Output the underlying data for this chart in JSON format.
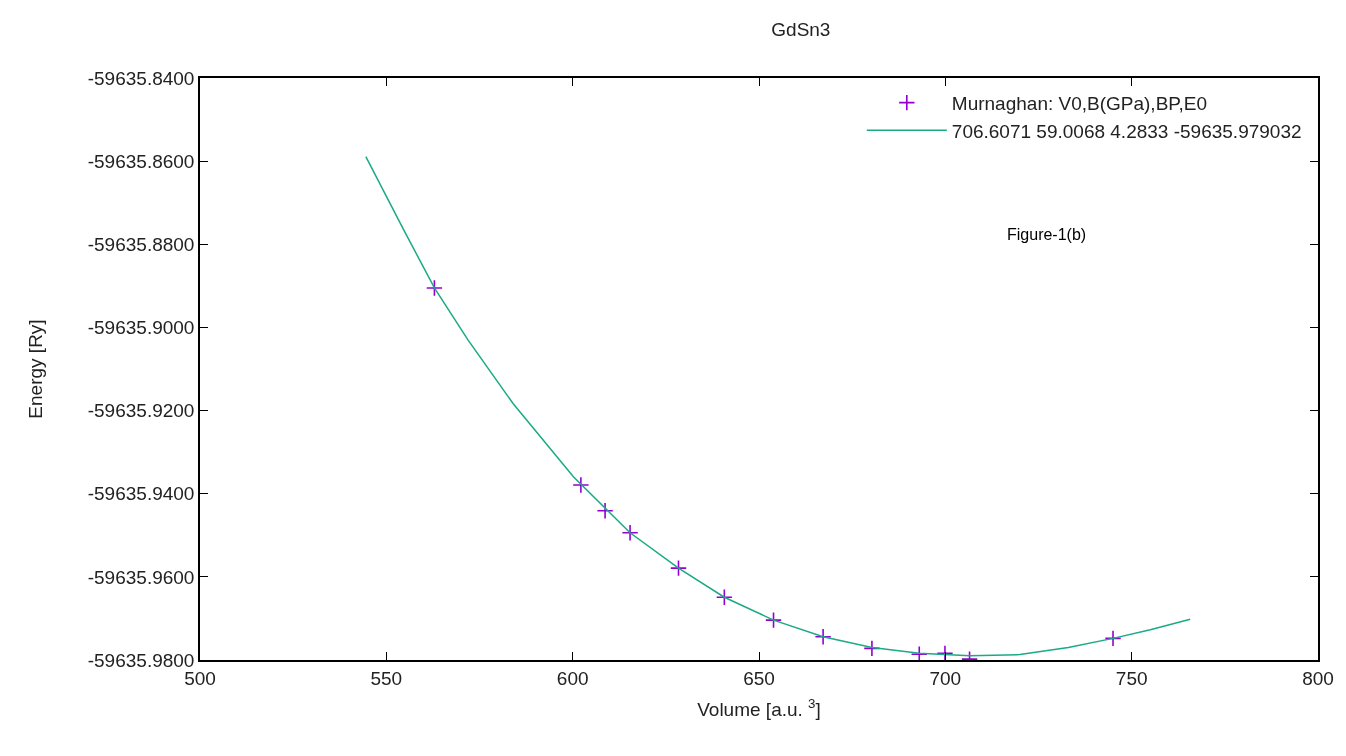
{
  "chart_data": {
    "type": "scatter",
    "title": "GdSn3",
    "xlabel": "Volume [a.u. $^{3}$]",
    "ylabel": "Energy [Ry]",
    "annotations": [
      "Figure-1(b)"
    ],
    "series": [
      {
        "name": "Murnaghan: V0,B(GPa),BP,E0",
        "marker": "cross",
        "color": "#9400d3",
        "x": [
          562.9,
          602.2,
          608.7,
          615.4,
          628.4,
          640.7,
          653.9,
          667.2,
          680.3,
          693.0,
          699.9,
          706.5,
          745.0
        ],
        "values": [
          -59635.8905,
          -59635.9379,
          -59635.9441,
          -59635.9494,
          -59635.9579,
          -59635.9649,
          -59635.9704,
          -59635.9744,
          -59635.9772,
          -59635.9786,
          -59635.9784,
          -59635.9798,
          -59635.9748
        ]
      },
      {
        "name": "706.6071 59.0068 4.2833 -59635.979032",
        "type": "line",
        "color": "#1aaa84",
        "x": [
          544.5,
          554.7,
          562.9,
          571.9,
          584.0,
          600.2,
          615.4,
          628.4,
          640.7,
          653.9,
          667.2,
          680.3,
          693.0,
          706.6,
          720.0,
          733.0,
          745.0,
          755.0,
          765.7
        ],
        "values": [
          -59635.8589,
          -59635.8766,
          -59635.8905,
          -59635.903,
          -59635.9183,
          -59635.9359,
          -59635.9494,
          -59635.9579,
          -59635.9649,
          -59635.9704,
          -59635.9744,
          -59635.977,
          -59635.9784,
          -59635.979,
          -59635.9787,
          -59635.977,
          -59635.9748,
          -59635.9727,
          -59635.9702
        ]
      }
    ],
    "xlim": [
      500,
      800
    ],
    "xticks": [
      500,
      550,
      600,
      650,
      700,
      750,
      800
    ],
    "ylim": [
      -59635.98,
      -59635.84
    ],
    "yticks": [
      {
        "value": -59635.98,
        "label": "-59635.9800"
      },
      {
        "value": -59635.96,
        "label": "-59635.9600"
      },
      {
        "value": -59635.94,
        "label": "-59635.9400"
      },
      {
        "value": -59635.92,
        "label": "-59635.9200"
      },
      {
        "value": -59635.9,
        "label": "-59635.9000"
      },
      {
        "value": -59635.88,
        "label": "-59635.8800"
      },
      {
        "value": -59635.86,
        "label": "-59635.8600"
      },
      {
        "value": -59635.84,
        "label": "-59635.8400"
      }
    ],
    "legend": "top right"
  }
}
